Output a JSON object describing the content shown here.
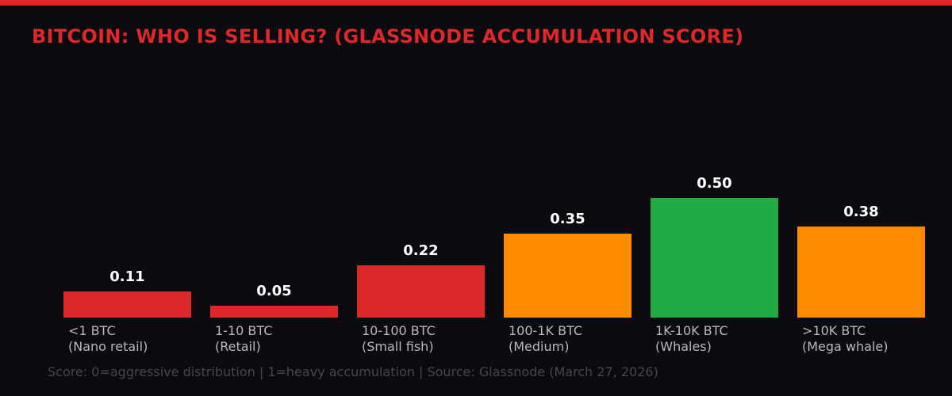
{
  "title": "BITCOIN: WHO IS SELLING? (GLASSNODE ACCUMULATION SCORE)",
  "footer": "Score: 0=aggressive distribution | 1=heavy accumulation | Source: Glassnode (March 27, 2026)",
  "colors": {
    "background": "#0b0b0f",
    "accent": "#dc2828",
    "red": "#dc2828",
    "orange": "#ff8a00",
    "green": "#22aa44"
  },
  "chart_data": {
    "type": "bar",
    "title": "BITCOIN: WHO IS SELLING? (GLASSNODE ACCUMULATION SCORE)",
    "xlabel": "",
    "ylabel": "Accumulation Score",
    "ylim": [
      0,
      1
    ],
    "grid": false,
    "legend": null,
    "categories": [
      "<1 BTC (Nano retail)",
      "1-10 BTC (Retail)",
      "10-100 BTC (Small fish)",
      "100-1K BTC (Medium)",
      ">1K-10K BTC (Whales)",
      ">10K BTC (Mega whale)"
    ],
    "values": [
      0.11,
      0.05,
      0.22,
      0.35,
      0.5,
      0.38
    ],
    "bars": [
      {
        "line1": "<1 BTC",
        "line2": "(Nano retail)",
        "value": 0.11,
        "label": "0.11",
        "color": "#dc2828"
      },
      {
        "line1": "1-10 BTC",
        "line2": "(Retail)",
        "value": 0.05,
        "label": "0.05",
        "color": "#dc2828"
      },
      {
        "line1": "10-100 BTC",
        "line2": "(Small fish)",
        "value": 0.22,
        "label": "0.22",
        "color": "#dc2828"
      },
      {
        "line1": "100-1K BTC",
        "line2": "(Medium)",
        "value": 0.35,
        "label": "0.35",
        "color": "#ff8a00"
      },
      {
        "line1": "1K-10K BTC",
        "line2": "(Whales)",
        "value": 0.5,
        "label": "0.50",
        "color": "#22aa44"
      },
      {
        "line1": ">10K BTC",
        "line2": "(Mega whale)",
        "value": 0.38,
        "label": "0.38",
        "color": "#ff8a00"
      }
    ],
    "annotation": "Score: 0=aggressive distribution | 1=heavy accumulation | Source: Glassnode (March 27, 2026)"
  }
}
